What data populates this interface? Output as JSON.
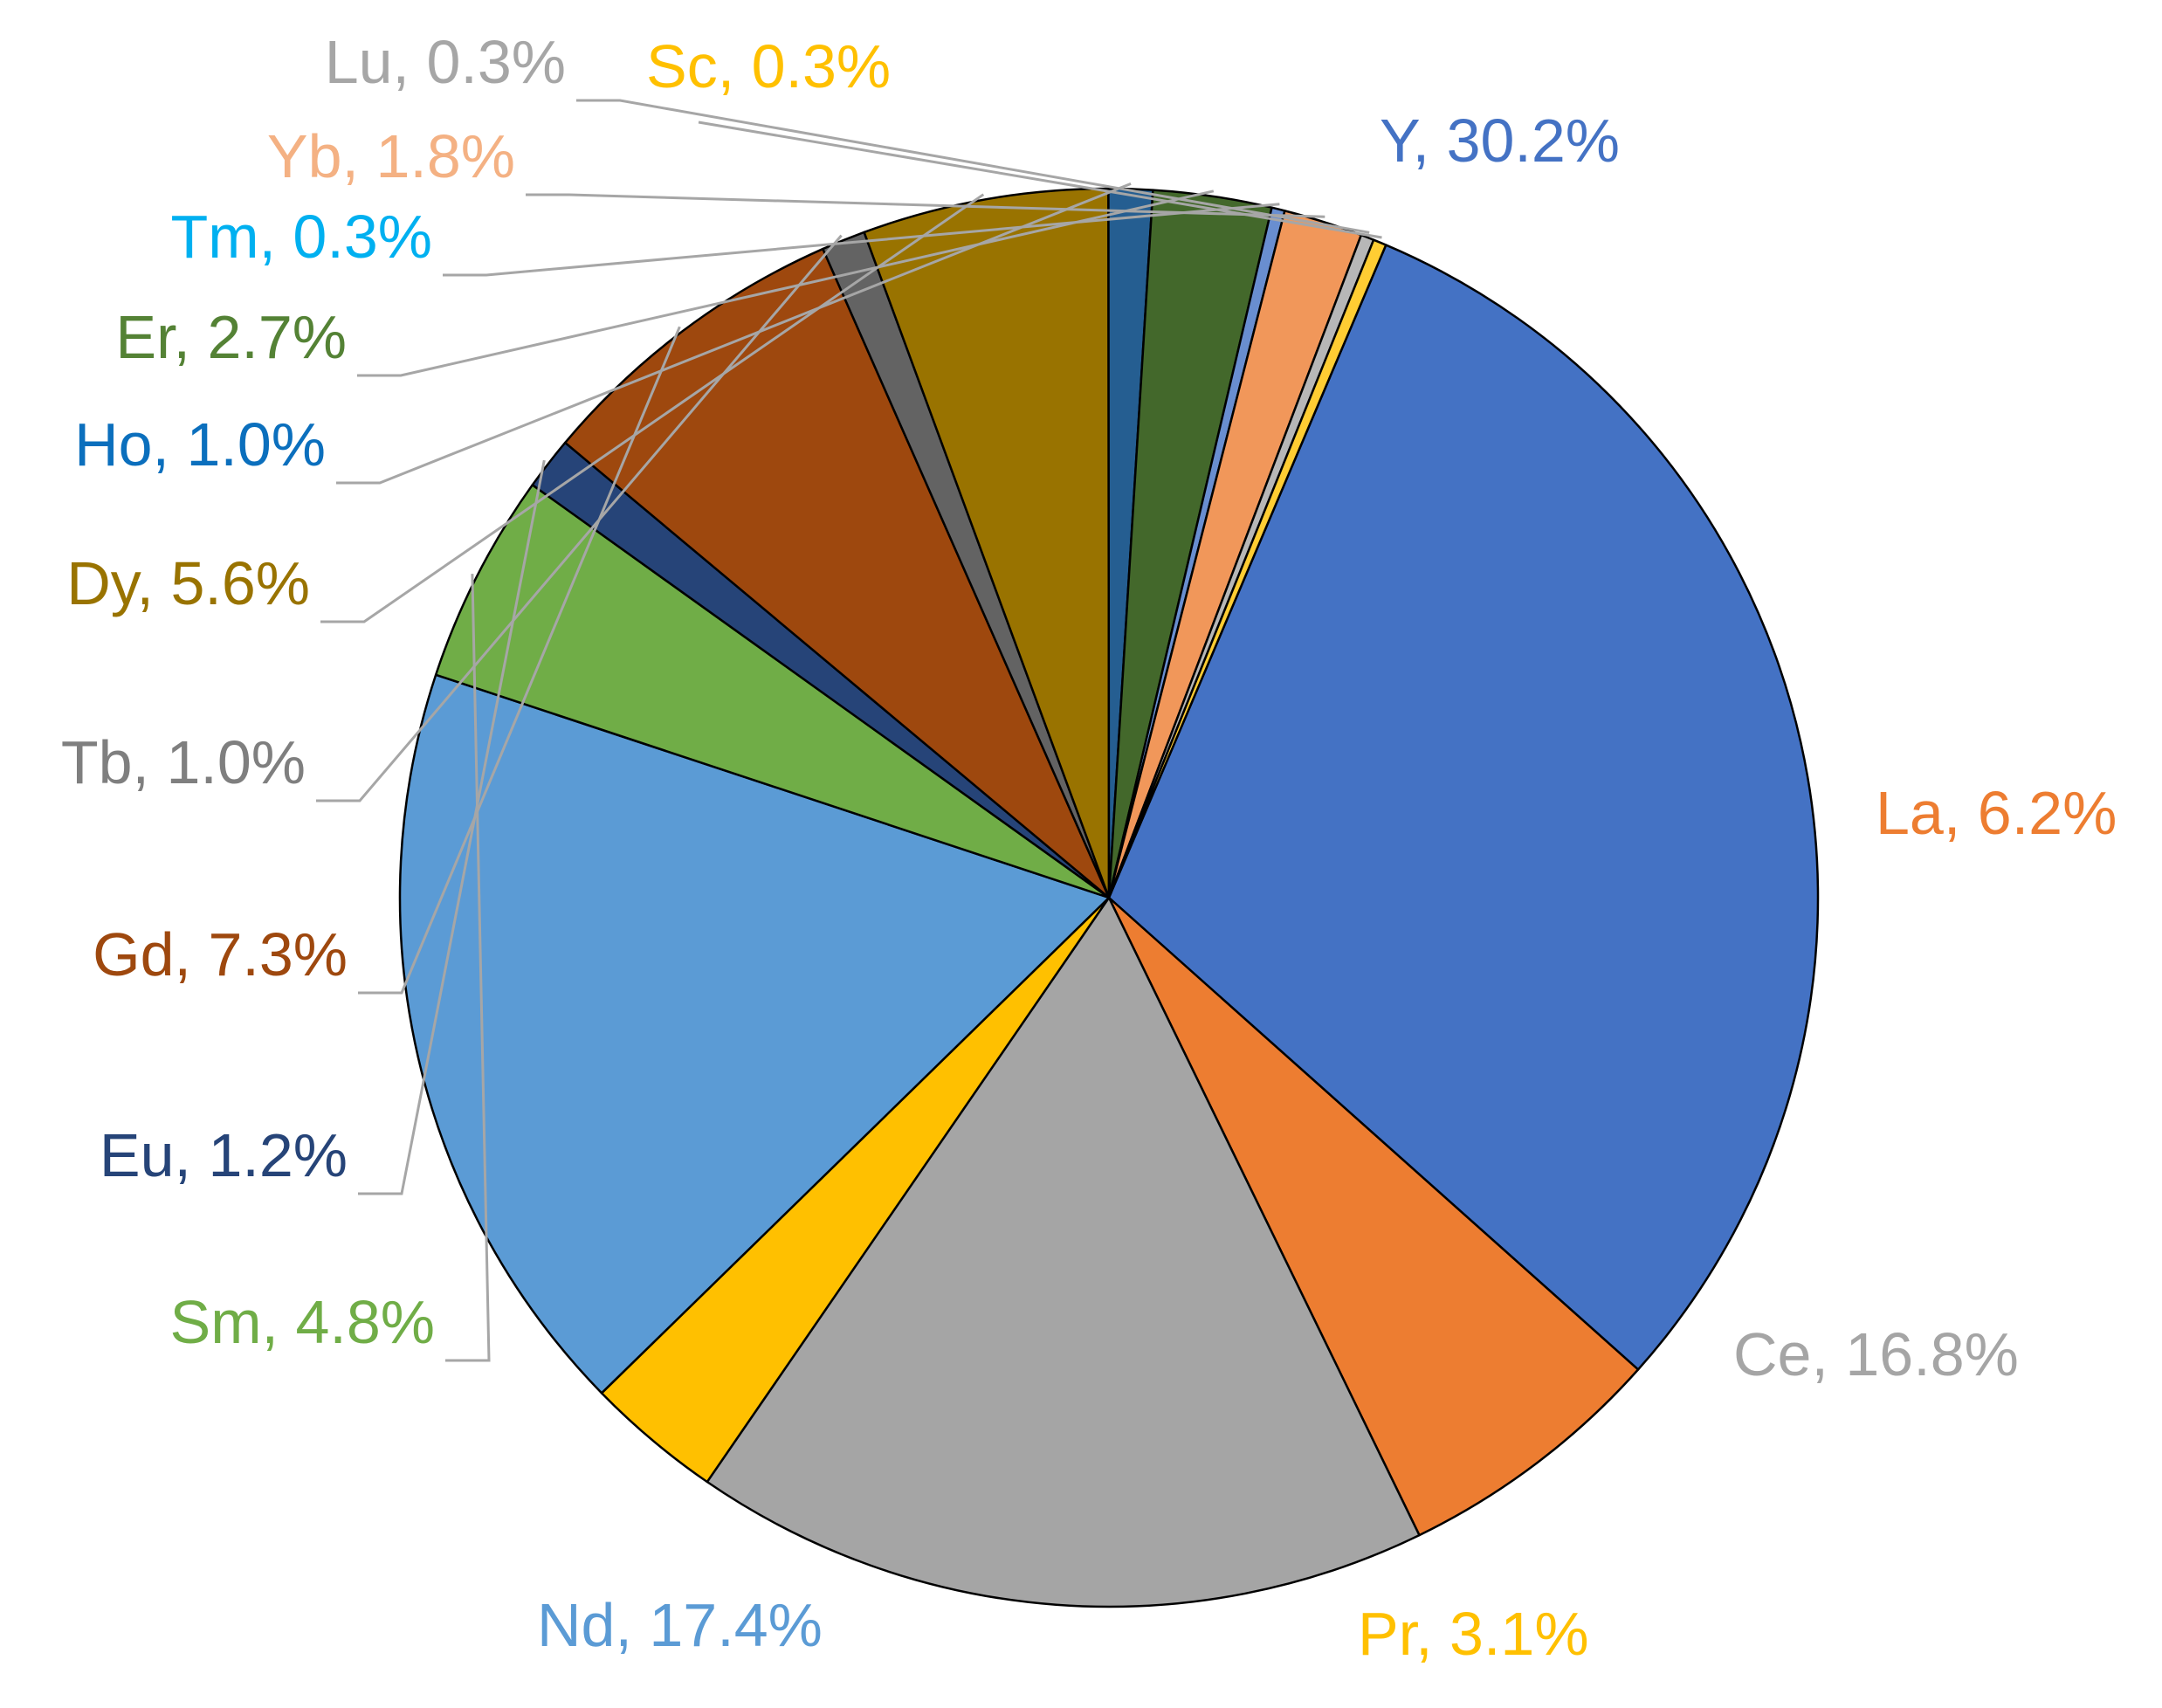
{
  "chart_data": {
    "type": "pie",
    "title": "",
    "start_angle_deg": 23,
    "direction": "clockwise",
    "slices": [
      {
        "label": "Y",
        "value": 30.2,
        "display": "Y, 30.2%",
        "color": "#4472c4",
        "label_color": "#4472c4"
      },
      {
        "label": "La",
        "value": 6.2,
        "display": "La, 6.2%",
        "color": "#ed7d31",
        "label_color": "#ed7d31"
      },
      {
        "label": "Ce",
        "value": 16.8,
        "display": "Ce, 16.8%",
        "color": "#a5a5a5",
        "label_color": "#a5a5a5"
      },
      {
        "label": "Pr",
        "value": 3.1,
        "display": "Pr, 3.1%",
        "color": "#ffc000",
        "label_color": "#ffc000"
      },
      {
        "label": "Nd",
        "value": 17.4,
        "display": "Nd, 17.4%",
        "color": "#5b9bd5",
        "label_color": "#5b9bd5"
      },
      {
        "label": "Sm",
        "value": 4.8,
        "display": "Sm, 4.8%",
        "color": "#70ad47",
        "label_color": "#70ad47"
      },
      {
        "label": "Eu",
        "value": 1.2,
        "display": "Eu, 1.2%",
        "color": "#264478",
        "label_color": "#264478"
      },
      {
        "label": "Gd",
        "value": 7.3,
        "display": "Gd, 7.3%",
        "color": "#9e480e",
        "label_color": "#9e480e"
      },
      {
        "label": "Tb",
        "value": 1.0,
        "display": "Tb, 1.0%",
        "color": "#636363",
        "label_color": "#7f7f7f"
      },
      {
        "label": "Dy",
        "value": 5.6,
        "display": "Dy, 5.6%",
        "color": "#997300",
        "label_color": "#997300"
      },
      {
        "label": "Ho",
        "value": 1.0,
        "display": "Ho, 1.0%",
        "color": "#255e91",
        "label_color": "#0b6fbd"
      },
      {
        "label": "Er",
        "value": 2.7,
        "display": "Er, 2.7%",
        "color": "#43682b",
        "label_color": "#548235"
      },
      {
        "label": "Tm",
        "value": 0.3,
        "display": "Tm, 0.3%",
        "color": "#698ed0",
        "label_color": "#00b0f0"
      },
      {
        "label": "Yb",
        "value": 1.8,
        "display": "Yb, 1.8%",
        "color": "#f1975a",
        "label_color": "#f4b183"
      },
      {
        "label": "Lu",
        "value": 0.3,
        "display": "Lu, 0.3%",
        "color": "#b7b7b7",
        "label_color": "#a6a6a6"
      },
      {
        "label": "Sc",
        "value": 0.3,
        "display": "Sc, 0.3%",
        "color": "#ffcd33",
        "label_color": "#ffc000"
      }
    ]
  }
}
